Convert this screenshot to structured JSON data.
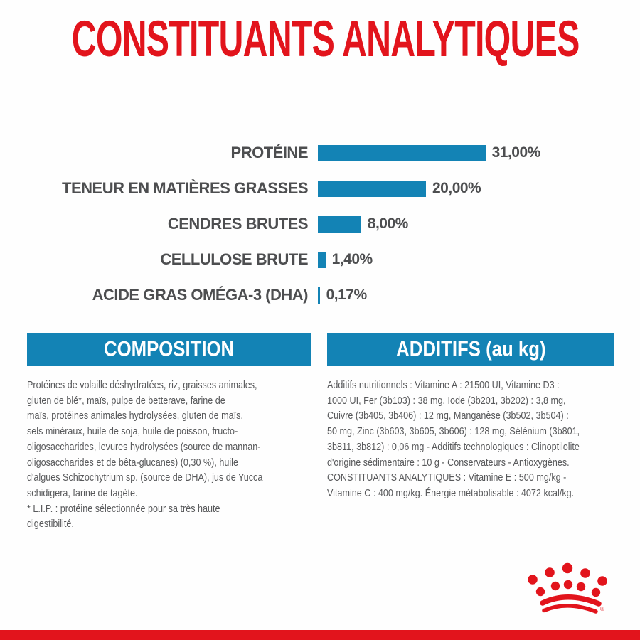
{
  "page": {
    "title": "CONSTITUANTS ANALYTIQUES"
  },
  "chart_data": {
    "type": "bar",
    "orientation": "horizontal",
    "title": "CONSTITUANTS ANALYTIQUES",
    "categories": [
      "PROTÉINE",
      "TENEUR EN MATIÈRES GRASSES",
      "CENDRES BRUTES",
      "CELLULOSE BRUTE",
      "ACIDE GRAS OMÉGA-3 (DHA)"
    ],
    "values": [
      31.0,
      20.0,
      8.0,
      1.4,
      0.17
    ],
    "value_labels": [
      "31,00%",
      "20,00%",
      "8,00%",
      "1,40%",
      "0,17%"
    ],
    "unit": "%",
    "xlim": [
      0,
      33
    ],
    "grid": false,
    "legend": false,
    "bar_color": "#1383b5"
  },
  "sections": {
    "composition": {
      "header": "COMPOSITION",
      "body": "Protéines de volaille déshydratées, riz, graisses animales,\ngluten de blé*, maïs, pulpe de betterave, farine de\nmaïs, protéines animales hydrolysées, gluten de maïs,\nsels minéraux, huile de soja, huile de poisson, fructo-\noligosaccharides, levures hydrolysées (source de mannan-\noligosaccharides et de bêta-glucanes) (0,30 %), huile\nd'algues Schizochytrium sp. (source de DHA), jus de Yucca\nschidigera, farine de tagète.\n* L.I.P. : protéine sélectionnée pour sa très haute\ndigestibilité."
    },
    "additifs": {
      "header": "ADDITIFS (au kg)",
      "body": "Additifs nutritionnels : Vitamine A : 21500 UI, Vitamine D3 :\n1000 UI, Fer (3b103) : 38 mg, Iode (3b201, 3b202) : 3,8 mg,\nCuivre (3b405, 3b406) : 12 mg, Manganèse (3b502, 3b504) :\n50 mg, Zinc (3b603, 3b605, 3b606) : 128 mg, Sélénium (3b801,\n3b811, 3b812) : 0,06 mg - Additifs technologiques : Clinoptilolite\nd'origine sédimentaire : 10 g - Conservateurs - Antioxygènes.\nCONSTITUANTS ANALYTIQUES : Vitamine E : 500 mg/kg -\nVitamine C : 400 mg/kg. Énergie métabolisable : 4072 kcal/kg."
    }
  },
  "branding": {
    "logo": "royal-canin-crown",
    "registered_mark": "®"
  },
  "colors": {
    "accent_red": "#e2141c",
    "accent_blue": "#1383b5",
    "text_gray": "#58595b",
    "chart_text": "#4d4e50"
  }
}
